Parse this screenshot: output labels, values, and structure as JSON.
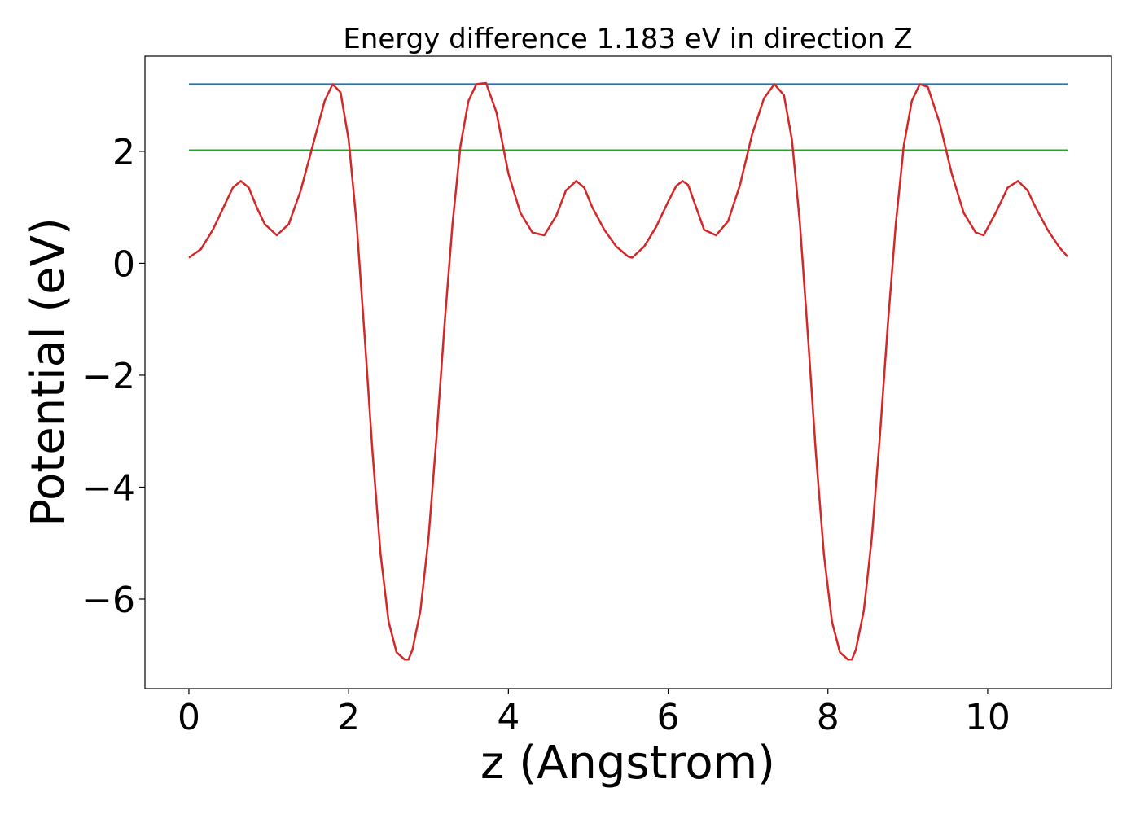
{
  "chart_data": {
    "type": "line",
    "title": "Energy difference 1.183 eV in direction Z",
    "xlabel": "z (Angstrom)",
    "ylabel": "Potential (eV)",
    "xlim": [
      -0.55,
      11.55
    ],
    "ylim": [
      -7.6,
      3.7
    ],
    "xticks": [
      0,
      2,
      4,
      6,
      8,
      10
    ],
    "yticks": [
      2,
      0,
      -2,
      -4,
      -6
    ],
    "ytick_labels": [
      "2",
      "0",
      "−2",
      "−4",
      "−6"
    ],
    "grid": false,
    "series": [
      {
        "color": "#1f77b4",
        "x": [
          0,
          11
        ],
        "y": [
          3.2,
          3.2
        ]
      },
      {
        "color": "#2ca02c",
        "x": [
          0,
          11
        ],
        "y": [
          2.02,
          2.02
        ]
      },
      {
        "color": "#d62728",
        "x": [
          0,
          0.15,
          0.3,
          0.45,
          0.55,
          0.65,
          0.75,
          0.85,
          0.95,
          1.1,
          1.25,
          1.4,
          1.55,
          1.7,
          1.8,
          1.9,
          2.0,
          2.1,
          2.2,
          2.3,
          2.4,
          2.5,
          2.6,
          2.7,
          2.75,
          2.8,
          2.9,
          3.0,
          3.1,
          3.2,
          3.3,
          3.4,
          3.5,
          3.6,
          3.72,
          3.85,
          4.0,
          4.15,
          4.3,
          4.45,
          4.6,
          4.72,
          4.85,
          4.95,
          5.05,
          5.2,
          5.35,
          5.5,
          5.55,
          5.7,
          5.85,
          6.0,
          6.1,
          6.18,
          6.25,
          6.35,
          6.45,
          6.6,
          6.75,
          6.9,
          7.05,
          7.2,
          7.33,
          7.45,
          7.55,
          7.65,
          7.75,
          7.85,
          7.95,
          8.05,
          8.15,
          8.25,
          8.3,
          8.35,
          8.45,
          8.55,
          8.65,
          8.75,
          8.85,
          8.95,
          9.05,
          9.15,
          9.25,
          9.4,
          9.55,
          9.7,
          9.85,
          9.95,
          10.1,
          10.25,
          10.38,
          10.5,
          10.6,
          10.75,
          10.9,
          11
        ],
        "y": [
          0.1,
          0.25,
          0.6,
          1.05,
          1.35,
          1.47,
          1.35,
          1.0,
          0.7,
          0.5,
          0.7,
          1.3,
          2.1,
          2.9,
          3.2,
          3.05,
          2.2,
          0.7,
          -1.3,
          -3.4,
          -5.2,
          -6.4,
          -6.95,
          -7.08,
          -7.08,
          -6.9,
          -6.2,
          -4.9,
          -3.1,
          -1.1,
          0.7,
          2.1,
          2.9,
          3.2,
          3.22,
          2.7,
          1.6,
          0.9,
          0.55,
          0.5,
          0.85,
          1.3,
          1.47,
          1.35,
          1.0,
          0.6,
          0.3,
          0.12,
          0.1,
          0.3,
          0.65,
          1.1,
          1.38,
          1.47,
          1.4,
          1.0,
          0.6,
          0.5,
          0.75,
          1.4,
          2.3,
          2.95,
          3.2,
          3.0,
          2.2,
          0.7,
          -1.3,
          -3.4,
          -5.2,
          -6.4,
          -6.95,
          -7.08,
          -7.08,
          -6.9,
          -6.2,
          -4.9,
          -3.1,
          -1.1,
          0.7,
          2.1,
          2.9,
          3.2,
          3.15,
          2.5,
          1.6,
          0.9,
          0.55,
          0.5,
          0.9,
          1.35,
          1.47,
          1.3,
          1.0,
          0.6,
          0.28,
          0.12
        ]
      }
    ]
  }
}
